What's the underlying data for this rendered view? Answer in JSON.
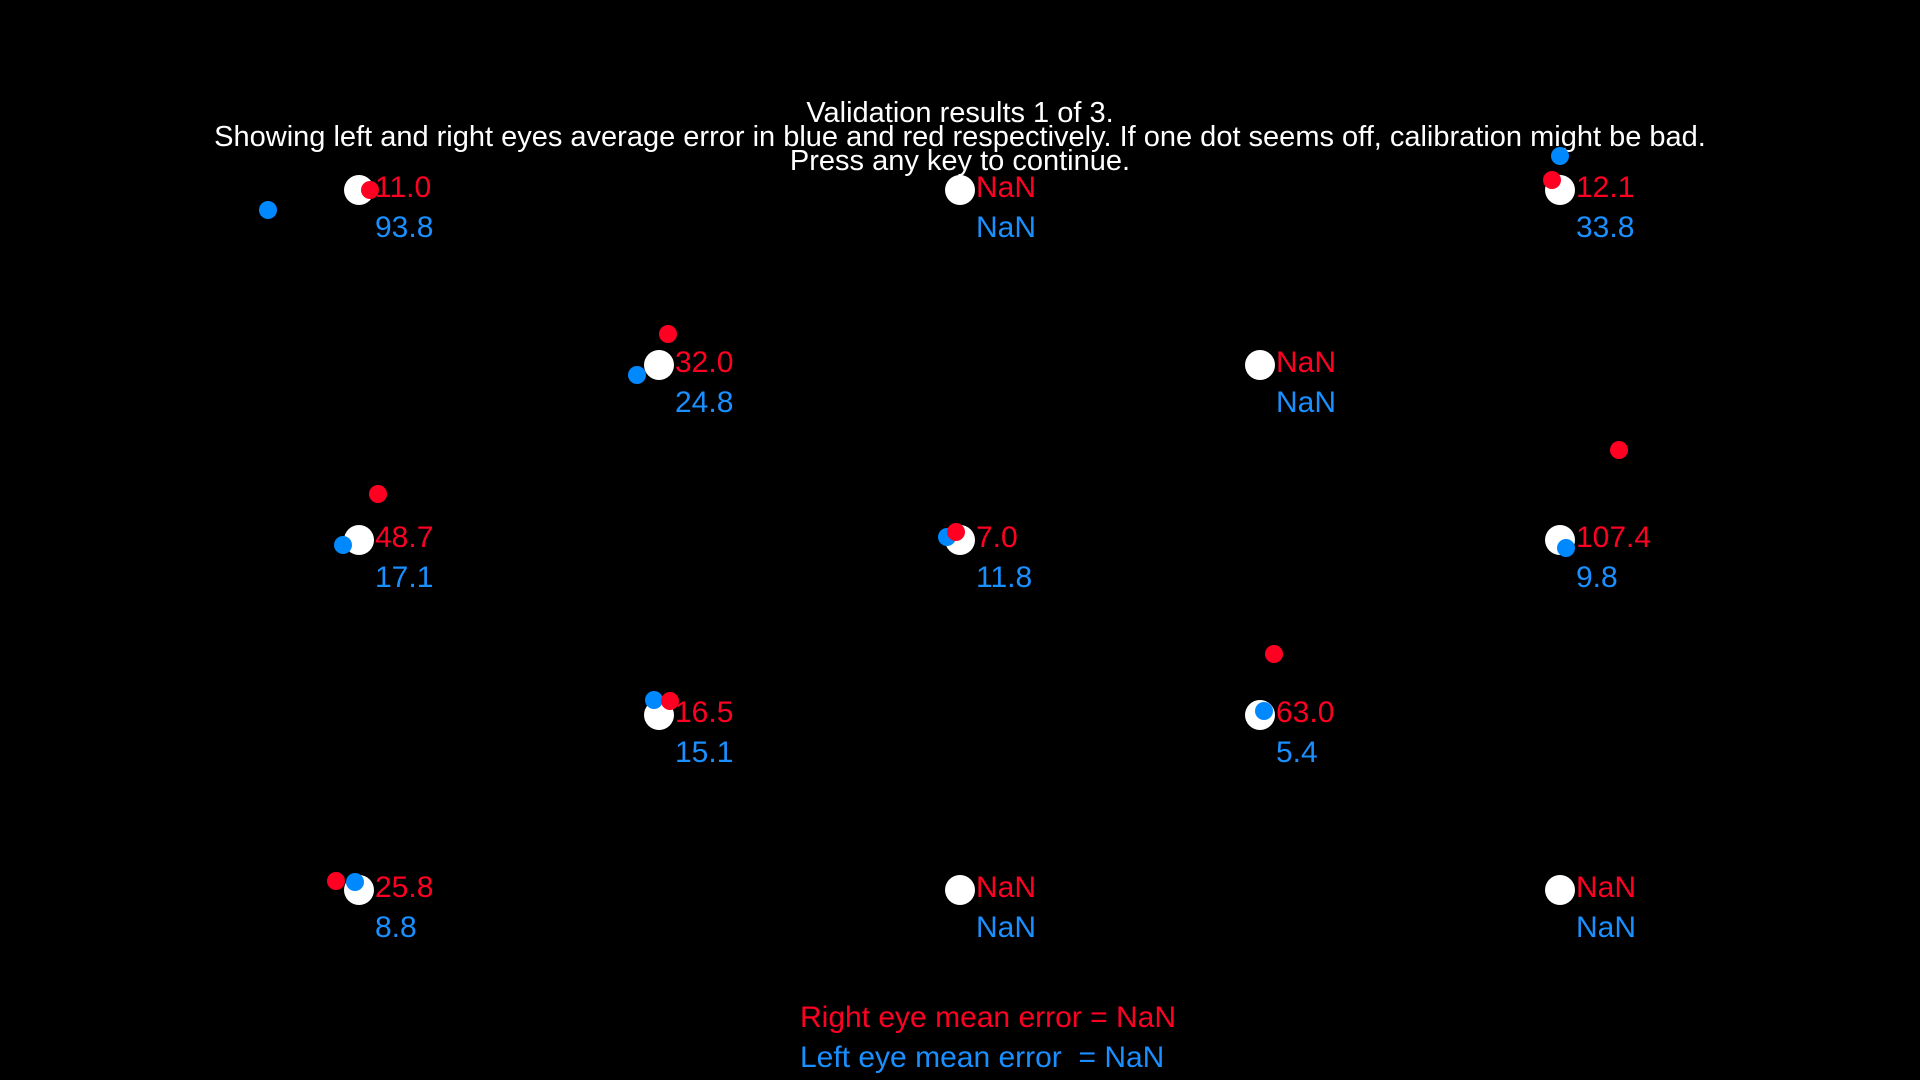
{
  "header": {
    "title": "Validation results 1 of 3.",
    "description": "Showing left and right eyes average error in blue and red respectively. If one dot seems off, calibration might be bad.",
    "prompt": "Press any key to continue."
  },
  "colors": {
    "background": "#000000",
    "target": "#ffffff",
    "right_eye": "#ff0022",
    "left_eye": "#1a8fff",
    "header_text": "#ffffff"
  },
  "validation_points": [
    {
      "id": "p1",
      "right_error": "11.0",
      "left_error": "93.8"
    },
    {
      "id": "p2",
      "right_error": "NaN",
      "left_error": "NaN"
    },
    {
      "id": "p3",
      "right_error": "12.1",
      "left_error": "33.8"
    },
    {
      "id": "p4",
      "right_error": "32.0",
      "left_error": "24.8"
    },
    {
      "id": "p5",
      "right_error": "NaN",
      "left_error": "NaN"
    },
    {
      "id": "p6",
      "right_error": "48.7",
      "left_error": "17.1"
    },
    {
      "id": "p7",
      "right_error": "7.0",
      "left_error": "11.8"
    },
    {
      "id": "p8",
      "right_error": "107.4",
      "left_error": "9.8"
    },
    {
      "id": "p9",
      "right_error": "16.5",
      "left_error": "15.1"
    },
    {
      "id": "p10",
      "right_error": "63.0",
      "left_error": "5.4"
    },
    {
      "id": "p11",
      "right_error": "25.8",
      "left_error": "8.8"
    },
    {
      "id": "p12",
      "right_error": "NaN",
      "left_error": "NaN"
    },
    {
      "id": "p13",
      "right_error": "NaN",
      "left_error": "NaN"
    }
  ],
  "summary": {
    "right_eye": "Right eye mean error = NaN",
    "left_eye": "Left eye mean error  = NaN"
  }
}
